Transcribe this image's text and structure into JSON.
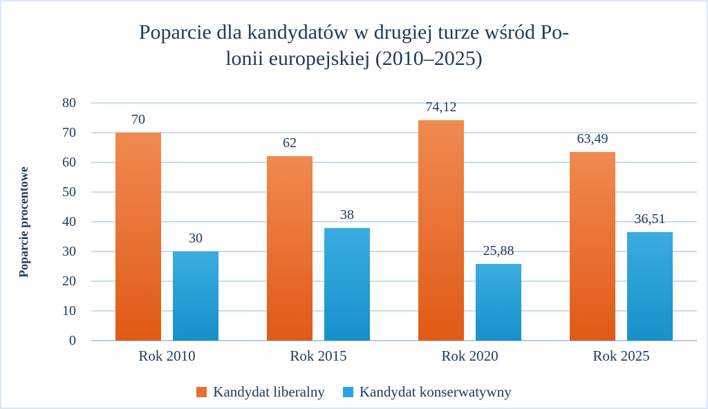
{
  "colors": {
    "text_navy": "#1f3a60",
    "gridline": "#cadded",
    "zero_line": "#b2cbe6",
    "page_border": "#d9e6f6",
    "background": "#ffffff"
  },
  "chart_data": {
    "type": "bar",
    "title": "Poparcie dla kandydatów w drugiej turze wśród Polonii europejskiej (2010–2025)",
    "title_lines": [
      "Poparcie dla kandydatów w drugiej turze wśród Po-",
      "lonii europejskiej (2010–2025)"
    ],
    "ylabel": "Poparcie procentowe",
    "xlabel": "",
    "categories": [
      "Rok 2010",
      "Rok 2015",
      "Rok 2020",
      "Rok 2025"
    ],
    "series": [
      {
        "name": "Kandydat liberalny",
        "values": [
          70,
          62,
          74.12,
          63.49
        ],
        "labels": [
          "70",
          "62",
          "74,12",
          "63,49"
        ],
        "color_top": "#f08a51",
        "color_bottom": "#e05a15",
        "legend_color": "#e8702e"
      },
      {
        "name": "Kandydat konserwatywny",
        "values": [
          30,
          38,
          25.88,
          36.51
        ],
        "labels": [
          "30",
          "38",
          "25,88",
          "36,51"
        ],
        "color_top": "#3aace0",
        "color_bottom": "#1791c9",
        "legend_color": "#2ba3dc"
      }
    ],
    "ylim": [
      0,
      80
    ],
    "yticks": [
      0,
      10,
      20,
      30,
      40,
      50,
      60,
      70,
      80
    ],
    "grid": true,
    "legend_position": "bottom"
  }
}
